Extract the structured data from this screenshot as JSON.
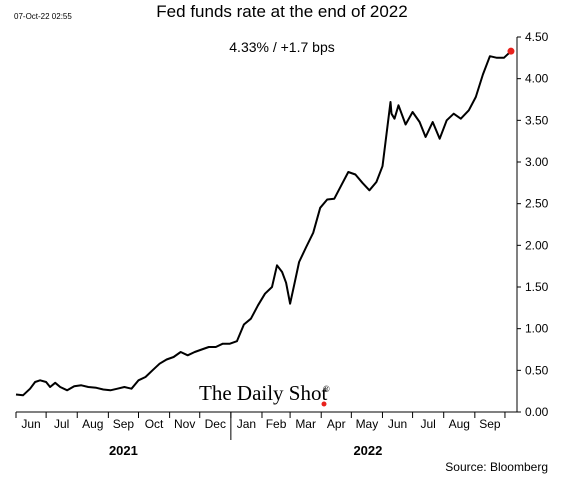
{
  "header": {
    "timestamp": "07-Oct-22 02:55",
    "title": "Fed funds rate at the end of 2022",
    "annotation": "4.33%  /  +1.7 bps"
  },
  "watermark": {
    "text": "The Daily Shot",
    "reg": "®",
    "dot_color": "#e8211c"
  },
  "source": "Source: Bloomberg",
  "chart_data": {
    "type": "line",
    "title": "Fed funds rate at the end of 2022",
    "xlabel": "",
    "ylabel": "",
    "ylim": [
      0,
      4.5
    ],
    "yticks": [
      "0.00",
      "0.50",
      "1.00",
      "1.50",
      "2.00",
      "2.50",
      "3.00",
      "3.50",
      "4.00",
      "4.50"
    ],
    "y_axis_position": "right",
    "grid": false,
    "line_color": "#000000",
    "last_point_color": "#e8211c",
    "months": [
      "Jun",
      "Jul",
      "Aug",
      "Sep",
      "Oct",
      "Nov",
      "Dec",
      "Jan",
      "Feb",
      "Mar",
      "Apr",
      "May",
      "Jun",
      "Jul",
      "Aug",
      "Sep"
    ],
    "years": [
      {
        "label": "2021",
        "months": [
          "Jun",
          "Jul",
          "Aug",
          "Sep",
          "Oct",
          "Nov",
          "Dec"
        ]
      },
      {
        "label": "2022",
        "months": [
          "Jan",
          "Feb",
          "Mar",
          "Apr",
          "May",
          "Jun",
          "Jul",
          "Aug",
          "Sep"
        ]
      }
    ],
    "series": [
      {
        "x": [
          "2021-06-01",
          "2021-06-08",
          "2021-06-15",
          "2021-06-20",
          "2021-06-25",
          "2021-07-01",
          "2021-07-05",
          "2021-07-10",
          "2021-07-15",
          "2021-07-22",
          "2021-07-29",
          "2021-08-05",
          "2021-08-12",
          "2021-08-20",
          "2021-08-27",
          "2021-09-03",
          "2021-09-10",
          "2021-09-17",
          "2021-09-24",
          "2021-10-01",
          "2021-10-08",
          "2021-10-15",
          "2021-10-22",
          "2021-10-29",
          "2021-11-05",
          "2021-11-12",
          "2021-11-19",
          "2021-11-26",
          "2021-12-03",
          "2021-12-10",
          "2021-12-17",
          "2021-12-24",
          "2021-12-31",
          "2022-01-07",
          "2022-01-14",
          "2022-01-21",
          "2022-01-28",
          "2022-02-04",
          "2022-02-11",
          "2022-02-16",
          "2022-02-21",
          "2022-02-25",
          "2022-03-01",
          "2022-03-05",
          "2022-03-10",
          "2022-03-17",
          "2022-03-24",
          "2022-03-31",
          "2022-04-07",
          "2022-04-14",
          "2022-04-21",
          "2022-04-28",
          "2022-05-05",
          "2022-05-12",
          "2022-05-19",
          "2022-05-26",
          "2022-06-01",
          "2022-06-09",
          "2022-06-10",
          "2022-06-13",
          "2022-06-17",
          "2022-06-24",
          "2022-07-01",
          "2022-07-08",
          "2022-07-14",
          "2022-07-21",
          "2022-07-28",
          "2022-08-04",
          "2022-08-11",
          "2022-08-18",
          "2022-08-26",
          "2022-09-02",
          "2022-09-09",
          "2022-09-16",
          "2022-09-23",
          "2022-09-30",
          "2022-10-07"
        ],
        "y": [
          0.21,
          0.2,
          0.28,
          0.36,
          0.38,
          0.36,
          0.3,
          0.35,
          0.3,
          0.26,
          0.31,
          0.32,
          0.3,
          0.29,
          0.27,
          0.26,
          0.28,
          0.3,
          0.28,
          0.38,
          0.42,
          0.5,
          0.58,
          0.63,
          0.66,
          0.72,
          0.68,
          0.72,
          0.75,
          0.78,
          0.78,
          0.82,
          0.82,
          0.85,
          1.05,
          1.12,
          1.28,
          1.42,
          1.5,
          1.76,
          1.68,
          1.55,
          1.3,
          1.52,
          1.8,
          1.98,
          2.15,
          2.45,
          2.55,
          2.56,
          2.72,
          2.88,
          2.85,
          2.75,
          2.66,
          2.76,
          2.95,
          3.72,
          3.58,
          3.52,
          3.68,
          3.45,
          3.6,
          3.48,
          3.3,
          3.48,
          3.28,
          3.5,
          3.58,
          3.52,
          3.62,
          3.78,
          4.05,
          4.27,
          4.25,
          4.25,
          4.33
        ]
      }
    ],
    "last_value_label": "4.33%"
  }
}
